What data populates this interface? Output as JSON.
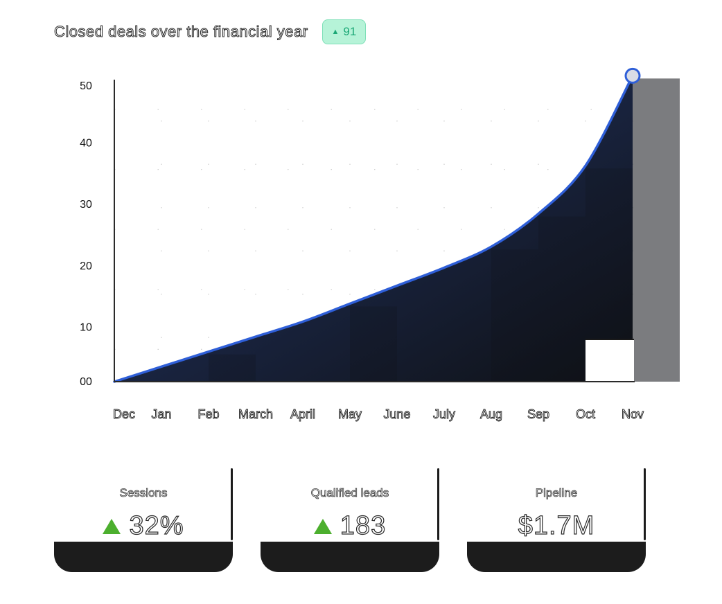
{
  "header": {
    "title": "Closed deals over the financial year",
    "badge_value": "91",
    "badge_icon": "triangle-up-icon"
  },
  "chart_data": {
    "type": "area",
    "title": "Closed deals over the financial year",
    "categories": [
      "Dec",
      "Jan",
      "Feb",
      "March",
      "April",
      "May",
      "June",
      "July",
      "Aug",
      "Sep",
      "Oct",
      "Nov"
    ],
    "series": [
      {
        "values": [
          0,
          2.5,
          5,
          7.5,
          10,
          13,
          16,
          19,
          22.5,
          28,
          36,
          51
        ]
      }
    ],
    "y_ticks": [
      "00",
      "10",
      "20",
      "30",
      "40",
      "50"
    ],
    "ylim": [
      0,
      50
    ],
    "grid": "dotted",
    "line_color": "#2f5fd8",
    "fill_color": "#1e2a48",
    "marker_color": "#2f5fd8"
  },
  "cards": [
    {
      "label": "Sessions",
      "value": "32%",
      "trend": "up"
    },
    {
      "label": "Qualified leads",
      "value": "183",
      "trend": "up"
    },
    {
      "label": "Pipeline",
      "value": "$1.7M",
      "trend": "none"
    }
  ],
  "colors": {
    "up": "#4caf2e",
    "badge_bg": "#b6f3d8",
    "badge_text": "#1ba876"
  }
}
